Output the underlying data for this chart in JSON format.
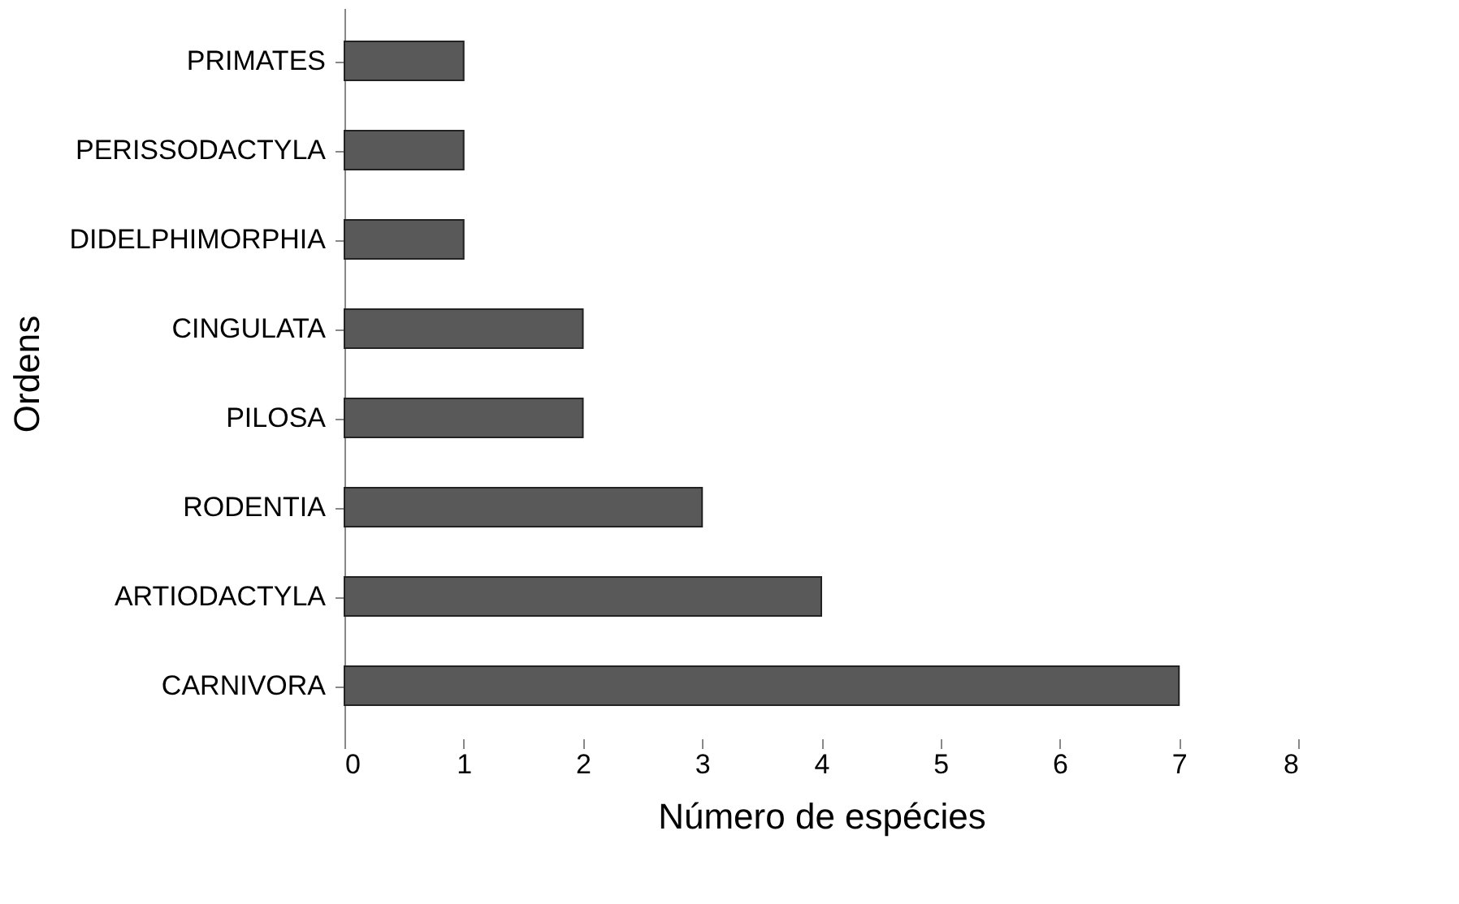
{
  "chart_data": {
    "type": "bar",
    "orientation": "horizontal",
    "xlabel": "Número de espécies",
    "ylabel": "Ordens",
    "categories": [
      "PRIMATES",
      "PERISSODACTYLA",
      "DIDELPHIMORPHIA",
      "CINGULATA",
      "PILOSA",
      "RODENTIA",
      "ARTIODACTYLA",
      "CARNIVORA"
    ],
    "values": [
      1,
      1,
      1,
      2,
      2,
      3,
      4,
      7
    ],
    "color": "#595959",
    "xlim": [
      0,
      8
    ],
    "xticks": [
      0,
      1,
      2,
      3,
      4,
      5,
      6,
      7,
      8
    ],
    "grid": false
  }
}
